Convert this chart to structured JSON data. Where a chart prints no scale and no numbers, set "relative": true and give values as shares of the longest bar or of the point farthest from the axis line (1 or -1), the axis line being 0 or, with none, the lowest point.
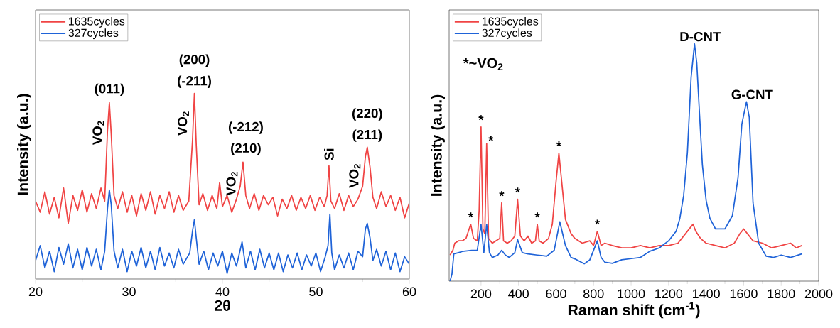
{
  "chart_data": [
    {
      "type": "line",
      "relative": true,
      "xlabel": "2θ",
      "ylabel": "Intensity (a.u.)",
      "xlim": [
        20,
        60
      ],
      "xticks": [
        20,
        30,
        40,
        50,
        60
      ],
      "legend": "top left",
      "grid": false,
      "marker": "none",
      "line_style": "solid",
      "series": [
        {
          "name": "1635cycles",
          "color": "#f04444",
          "x": [
            20,
            20.5,
            21,
            21.5,
            22,
            22.5,
            23,
            23.5,
            24,
            24.5,
            25,
            25.5,
            26,
            26.5,
            27,
            27.4,
            27.7,
            27.9,
            28.1,
            28.4,
            28.8,
            29.3,
            29.8,
            30.3,
            30.8,
            31.3,
            31.8,
            32.3,
            32.8,
            33.3,
            33.8,
            34.3,
            34.8,
            35.3,
            35.8,
            36.4,
            36.8,
            37.0,
            37.2,
            37.5,
            37.9,
            38.4,
            38.9,
            39.4,
            39.7,
            40.0,
            40.5,
            41.0,
            41.5,
            41.9,
            42.2,
            42.5,
            42.9,
            43.4,
            43.9,
            44.4,
            44.9,
            45.4,
            45.9,
            46.4,
            46.9,
            47.4,
            47.9,
            48.4,
            48.9,
            49.4,
            49.9,
            50.4,
            50.9,
            51.2,
            51.4,
            51.6,
            52.0,
            52.5,
            53.0,
            53.5,
            54.0,
            54.5,
            55.0,
            55.3,
            55.5,
            55.8,
            56.1,
            56.5,
            57,
            57.5,
            58,
            58.5,
            59,
            59.5,
            60
          ],
          "values": [
            0.42,
            0.36,
            0.47,
            0.35,
            0.44,
            0.33,
            0.49,
            0.3,
            0.45,
            0.37,
            0.48,
            0.36,
            0.46,
            0.38,
            0.49,
            0.42,
            0.8,
            0.95,
            0.78,
            0.45,
            0.38,
            0.47,
            0.36,
            0.45,
            0.34,
            0.46,
            0.37,
            0.47,
            0.35,
            0.45,
            0.38,
            0.47,
            0.36,
            0.45,
            0.37,
            0.42,
            0.75,
            1.0,
            0.72,
            0.4,
            0.46,
            0.37,
            0.45,
            0.38,
            0.52,
            0.39,
            0.45,
            0.36,
            0.43,
            0.5,
            0.63,
            0.45,
            0.38,
            0.46,
            0.37,
            0.45,
            0.4,
            0.44,
            0.34,
            0.43,
            0.38,
            0.45,
            0.37,
            0.44,
            0.38,
            0.45,
            0.37,
            0.44,
            0.39,
            0.45,
            0.61,
            0.42,
            0.38,
            0.46,
            0.37,
            0.45,
            0.39,
            0.43,
            0.5,
            0.66,
            0.71,
            0.6,
            0.44,
            0.38,
            0.47,
            0.39,
            0.45,
            0.37,
            0.44,
            0.33,
            0.41
          ]
        },
        {
          "name": "327cycles",
          "color": "#1f63d8",
          "x": [
            20,
            20.5,
            21,
            21.5,
            22,
            22.5,
            23,
            23.5,
            24,
            24.5,
            25,
            25.5,
            26,
            26.5,
            27,
            27.4,
            27.7,
            27.9,
            28.1,
            28.4,
            28.8,
            29.3,
            29.8,
            30.3,
            30.8,
            31.3,
            31.8,
            32.3,
            32.8,
            33.3,
            33.8,
            34.3,
            34.8,
            35.3,
            35.8,
            36.5,
            36.8,
            37.0,
            37.2,
            37.5,
            38,
            38.5,
            39,
            39.5,
            40,
            40.5,
            41,
            41.5,
            42.1,
            42.5,
            43,
            43.5,
            44,
            44.5,
            45,
            45.5,
            46,
            46.5,
            47,
            47.5,
            48,
            48.5,
            49,
            49.5,
            50,
            50.5,
            51,
            51.3,
            51.5,
            51.7,
            52,
            52.5,
            53,
            53.5,
            54,
            54.5,
            55,
            55.3,
            55.5,
            55.8,
            56.1,
            56.5,
            57,
            57.5,
            58,
            58.5,
            59,
            59.5,
            60
          ],
          "values": [
            0.1,
            0.18,
            0.06,
            0.15,
            0.04,
            0.17,
            0.08,
            0.19,
            0.06,
            0.16,
            0.05,
            0.17,
            0.07,
            0.16,
            0.05,
            0.15,
            0.38,
            0.48,
            0.4,
            0.15,
            0.06,
            0.16,
            0.04,
            0.15,
            0.07,
            0.17,
            0.06,
            0.15,
            0.05,
            0.17,
            0.07,
            0.14,
            0.06,
            0.16,
            0.08,
            0.14,
            0.26,
            0.32,
            0.22,
            0.08,
            0.15,
            0.05,
            0.14,
            0.07,
            0.15,
            0.03,
            0.14,
            0.07,
            0.2,
            0.06,
            0.15,
            0.05,
            0.16,
            0.06,
            0.14,
            0.05,
            0.14,
            0.04,
            0.13,
            0.06,
            0.14,
            0.05,
            0.13,
            0.07,
            0.14,
            0.04,
            0.12,
            0.18,
            0.35,
            0.14,
            0.05,
            0.13,
            0.06,
            0.14,
            0.05,
            0.15,
            0.12,
            0.27,
            0.3,
            0.22,
            0.1,
            0.16,
            0.07,
            0.15,
            0.05,
            0.14,
            0.04,
            0.12,
            0.08
          ]
        }
      ],
      "annotations": [
        {
          "text": "(011)",
          "x": 27.9,
          "y": 0.95
        },
        {
          "text": "VO$_{2}$",
          "x": 27.9,
          "y": 0.95
        },
        {
          "text": "(200)",
          "x": 37.0,
          "y": 1.0
        },
        {
          "text": "(-211)",
          "x": 37.0,
          "y": 1.0
        },
        {
          "text": "VO$_{2}$",
          "x": 37.0,
          "y": 1.0
        },
        {
          "text": "(-212)",
          "x": 42.2,
          "y": 0.63
        },
        {
          "text": "(210)",
          "x": 42.2,
          "y": 0.63
        },
        {
          "text": "VO$_{2}$",
          "x": 42.2,
          "y": 0.63
        },
        {
          "text": "Si",
          "x": 51.4,
          "y": 0.61
        },
        {
          "text": "(220)",
          "x": 55.5,
          "y": 0.71
        },
        {
          "text": "(211)",
          "x": 55.5,
          "y": 0.71
        },
        {
          "text": "VO$_{2}$",
          "x": 55.5,
          "y": 0.71
        }
      ]
    },
    {
      "type": "line",
      "relative": true,
      "xlabel": "Raman shift (cm$^{-1}$)",
      "ylabel": "Intensity (a.u.)",
      "xlim": [
        30,
        2000
      ],
      "xticks": [
        200,
        400,
        600,
        800,
        1000,
        1200,
        1400,
        1600,
        1800,
        2000
      ],
      "legend": "top left",
      "grid": false,
      "marker": "none",
      "line_style": "solid",
      "series": [
        {
          "name": "1635cycles",
          "color": "#f04444",
          "x": [
            35,
            50,
            60,
            80,
            100,
            120,
            145,
            160,
            180,
            190,
            200,
            210,
            220,
            230,
            240,
            260,
            280,
            300,
            310,
            320,
            340,
            360,
            380,
            395,
            410,
            430,
            450,
            470,
            490,
            500,
            510,
            530,
            560,
            580,
            600,
            615,
            630,
            650,
            680,
            700,
            740,
            780,
            800,
            820,
            840,
            860,
            900,
            950,
            1000,
            1050,
            1100,
            1150,
            1200,
            1250,
            1290,
            1320,
            1330,
            1345,
            1370,
            1400,
            1450,
            1500,
            1550,
            1580,
            1600,
            1620,
            1650,
            1700,
            1750,
            1800,
            1850,
            1880,
            1910
          ],
          "values": [
            0.11,
            0.13,
            0.16,
            0.17,
            0.17,
            0.18,
            0.24,
            0.18,
            0.17,
            0.3,
            0.65,
            0.22,
            0.2,
            0.58,
            0.18,
            0.16,
            0.17,
            0.18,
            0.33,
            0.17,
            0.16,
            0.17,
            0.19,
            0.345,
            0.19,
            0.17,
            0.19,
            0.16,
            0.17,
            0.24,
            0.17,
            0.16,
            0.18,
            0.24,
            0.42,
            0.54,
            0.42,
            0.26,
            0.2,
            0.18,
            0.16,
            0.17,
            0.15,
            0.21,
            0.15,
            0.16,
            0.15,
            0.14,
            0.14,
            0.15,
            0.14,
            0.15,
            0.15,
            0.16,
            0.2,
            0.23,
            0.24,
            0.21,
            0.18,
            0.16,
            0.15,
            0.14,
            0.16,
            0.2,
            0.22,
            0.2,
            0.17,
            0.16,
            0.14,
            0.15,
            0.16,
            0.14,
            0.15
          ]
        },
        {
          "name": "327cycles",
          "color": "#1f63d8",
          "x": [
            35,
            45,
            55,
            80,
            100,
            150,
            180,
            200,
            215,
            230,
            245,
            260,
            290,
            310,
            330,
            350,
            380,
            395,
            420,
            450,
            500,
            550,
            590,
            620,
            650,
            680,
            700,
            750,
            780,
            820,
            840,
            860,
            900,
            950,
            1000,
            1050,
            1100,
            1150,
            1200,
            1240,
            1260,
            1280,
            1300,
            1320,
            1338,
            1350,
            1365,
            1380,
            1400,
            1420,
            1450,
            1500,
            1540,
            1570,
            1590,
            1600,
            1615,
            1630,
            1650,
            1680,
            1720,
            1760,
            1800,
            1850,
            1910
          ],
          "values": [
            0.0,
            0.03,
            0.115,
            0.12,
            0.125,
            0.13,
            0.13,
            0.24,
            0.12,
            0.24,
            0.12,
            0.1,
            0.11,
            0.13,
            0.11,
            0.1,
            0.12,
            0.175,
            0.12,
            0.115,
            0.11,
            0.105,
            0.13,
            0.25,
            0.15,
            0.1,
            0.094,
            0.073,
            0.09,
            0.17,
            0.1,
            0.08,
            0.075,
            0.09,
            0.095,
            0.1,
            0.126,
            0.14,
            0.17,
            0.21,
            0.265,
            0.36,
            0.54,
            0.86,
            1.0,
            0.92,
            0.7,
            0.49,
            0.34,
            0.265,
            0.22,
            0.22,
            0.276,
            0.436,
            0.66,
            0.7,
            0.756,
            0.69,
            0.33,
            0.16,
            0.105,
            0.1,
            0.11,
            0.1,
            0.115
          ]
        }
      ],
      "annotations": [
        {
          "text": "*",
          "x": 145,
          "y": 0.24
        },
        {
          "text": "*",
          "x": 200,
          "y": 0.65
        },
        {
          "text": "*",
          "x": 230,
          "y": 0.58
        },
        {
          "text": "*",
          "x": 310,
          "y": 0.33
        },
        {
          "text": "*",
          "x": 395,
          "y": 0.345
        },
        {
          "text": "*",
          "x": 500,
          "y": 0.24
        },
        {
          "text": "*",
          "x": 615,
          "y": 0.54
        },
        {
          "text": "*",
          "x": 820,
          "y": 0.21
        },
        {
          "text": "D-CNT",
          "x": 1338,
          "y": 1.0
        },
        {
          "text": "G-CNT",
          "x": 1615,
          "y": 0.756
        },
        "*~VO$_{2}$"
      ]
    }
  ]
}
